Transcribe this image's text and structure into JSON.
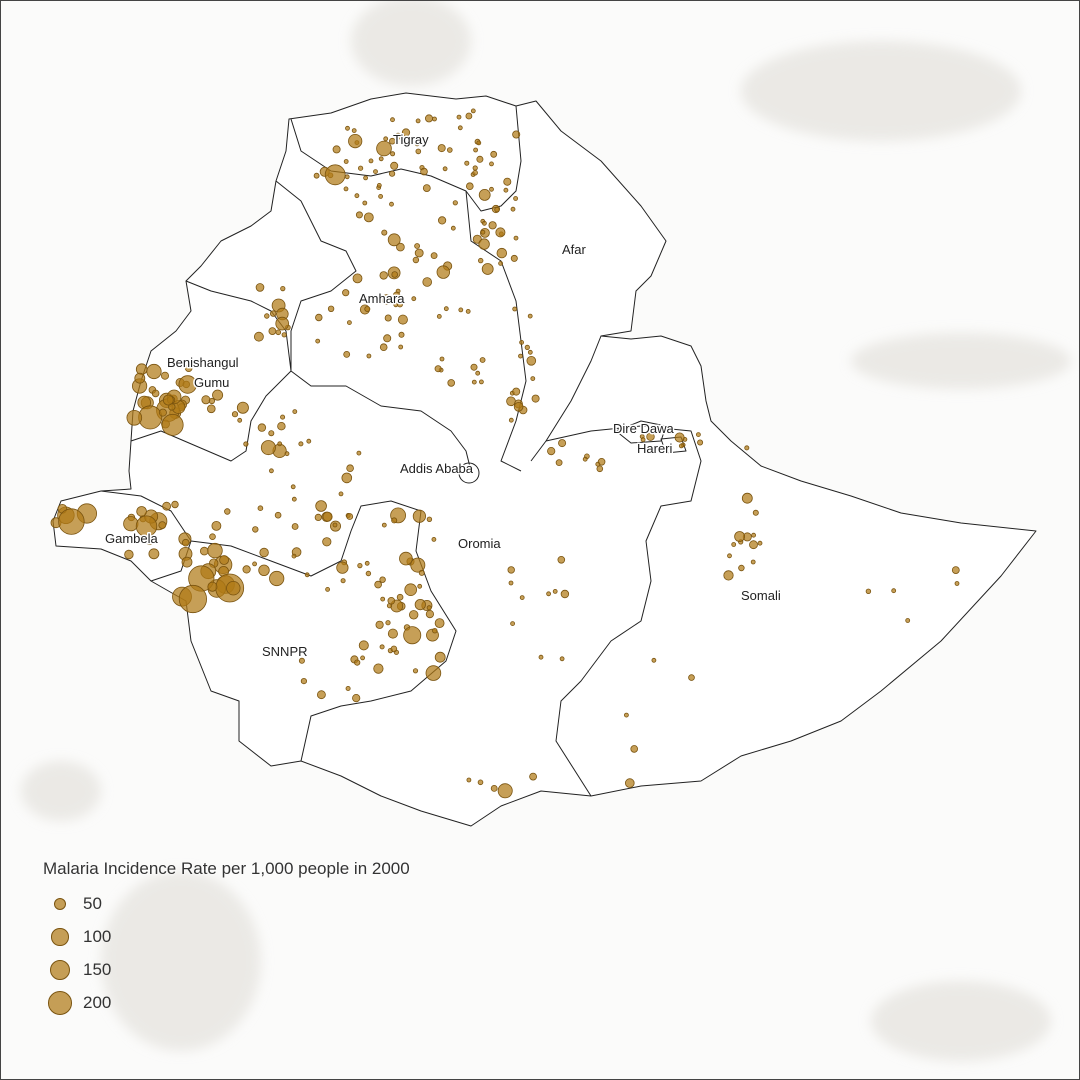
{
  "map": {
    "regions": [
      "Tigray",
      "Afar",
      "Amhara",
      "Benishangul Gumu",
      "Dire Dawa",
      "Hareri",
      "Addis Ababa",
      "Oromia",
      "Gambela",
      "Somali",
      "SNNPR"
    ],
    "label_lines": {
      "benishangul_1": "Benishangul",
      "benishangul_2": "Gumu",
      "dire_dawa": "Dire Dawa"
    }
  },
  "legend": {
    "title": "Malaria Incidence Rate per 1,000 people in 2000",
    "items": [
      {
        "label": "50",
        "value": 50
      },
      {
        "label": "100",
        "value": 100
      },
      {
        "label": "150",
        "value": 150
      },
      {
        "label": "200",
        "value": 200
      }
    ]
  },
  "colors": {
    "bubble_fill": "#b07a16",
    "bubble_stroke": "#7a5410",
    "border": "#222222",
    "relief": "#d9d6d0"
  }
}
